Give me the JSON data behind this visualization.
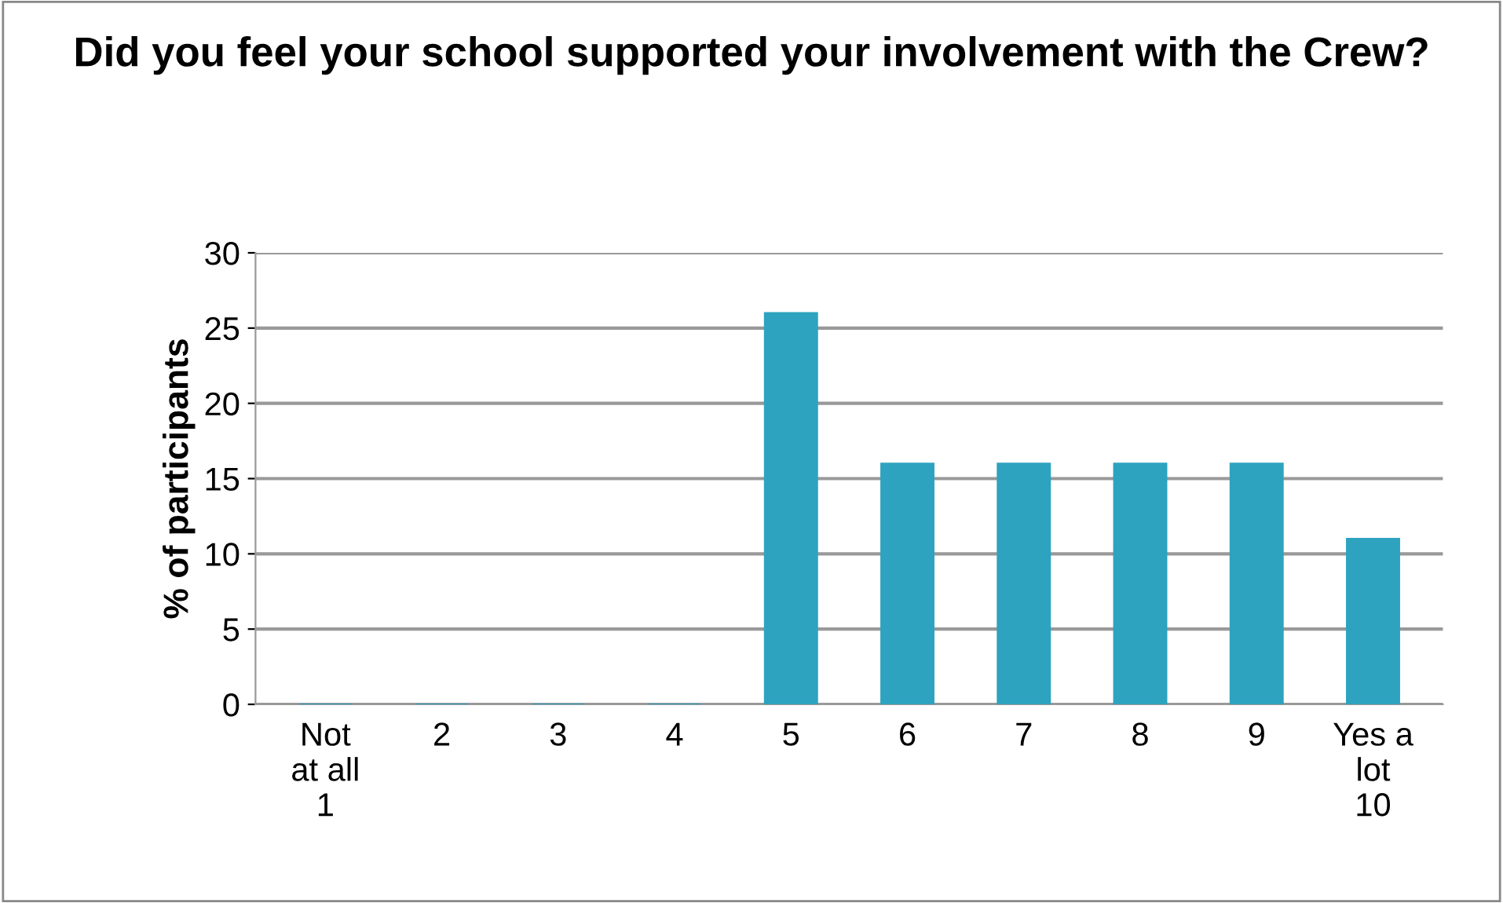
{
  "chart_data": {
    "type": "bar",
    "title": "Did you feel your school supported your involvement with the Crew?",
    "ylabel": "% of participants",
    "categories": [
      "Not\nat all\n1",
      "2",
      "3",
      "4",
      "5",
      "6",
      "7",
      "8",
      "9",
      "Yes a\nlot\n10"
    ],
    "values": [
      0,
      0,
      0,
      0,
      26,
      16,
      16,
      16,
      16,
      11
    ],
    "color": "#2ea3bf",
    "ylim": [
      0,
      30
    ],
    "yticks": [
      0,
      5,
      10,
      15,
      20,
      25,
      30
    ],
    "grid": "y",
    "legend": false
  }
}
